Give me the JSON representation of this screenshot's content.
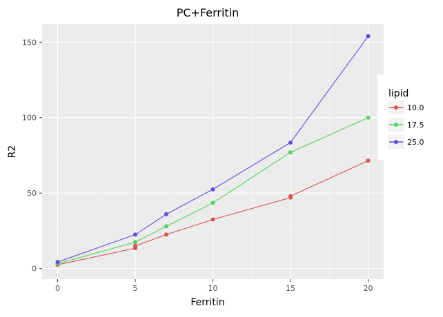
{
  "chart_data": {
    "type": "line",
    "title": "PC+Ferritin",
    "xlabel": "Ferritin",
    "ylabel": "R2",
    "xlim": [
      -1,
      21
    ],
    "ylim": [
      -7,
      162
    ],
    "x_ticks": [
      0,
      5,
      10,
      15,
      20
    ],
    "y_ticks": [
      0,
      50,
      100,
      150
    ],
    "grid": true,
    "legend": {
      "title": "lipid",
      "placement": "right"
    },
    "series": [
      {
        "name": "10.0",
        "color": "#d9534f",
        "points": [
          [
            0,
            2.5
          ],
          [
            5,
            13.5
          ],
          [
            5,
            15
          ],
          [
            7,
            22.5
          ],
          [
            10,
            32.5
          ],
          [
            15,
            47
          ],
          [
            15,
            48
          ],
          [
            20,
            71.5
          ]
        ]
      },
      {
        "name": "17.5",
        "color": "#4cd45a",
        "points": [
          [
            0,
            3.2
          ],
          [
            5,
            17.5
          ],
          [
            7,
            28
          ],
          [
            10,
            43.5
          ],
          [
            15,
            77
          ],
          [
            20,
            100
          ]
        ]
      },
      {
        "name": "25.0",
        "color": "#5b4fd9",
        "points": [
          [
            0,
            4.3
          ],
          [
            5,
            22.5
          ],
          [
            7,
            36
          ],
          [
            10,
            52.5
          ],
          [
            15,
            83.5
          ],
          [
            20,
            154
          ]
        ]
      }
    ]
  }
}
